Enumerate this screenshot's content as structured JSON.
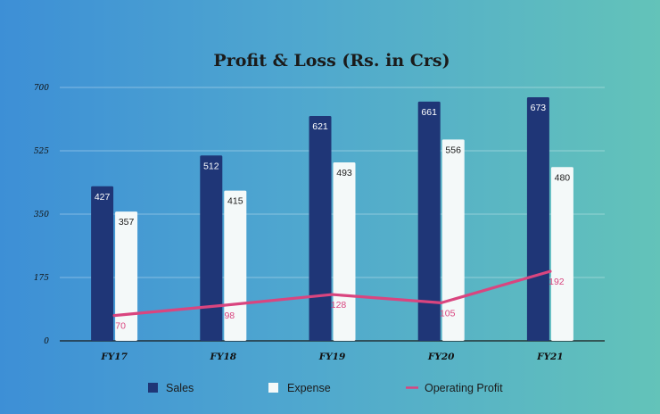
{
  "chart_data": {
    "type": "bar",
    "title": "Profit & Loss (Rs. in Crs)",
    "xlabel": "",
    "ylabel": "",
    "ylim": [
      0,
      700
    ],
    "yticks": [
      "0",
      "175",
      "350",
      "525",
      "700"
    ],
    "categories": [
      "FY17",
      "FY18",
      "FY19",
      "FY20",
      "FY21"
    ],
    "series": [
      {
        "name": "Sales",
        "kind": "bar",
        "color": "#1f3677",
        "values": [
          427,
          512,
          621,
          661,
          673
        ]
      },
      {
        "name": "Expense",
        "kind": "bar",
        "color": "#f4f9f9",
        "values": [
          357,
          415,
          493,
          556,
          480
        ]
      },
      {
        "name": "Operating Profit",
        "kind": "line",
        "color": "#d9457f",
        "values": [
          70,
          98,
          128,
          105,
          192
        ]
      }
    ],
    "grid": true,
    "legend_position": "bottom"
  }
}
